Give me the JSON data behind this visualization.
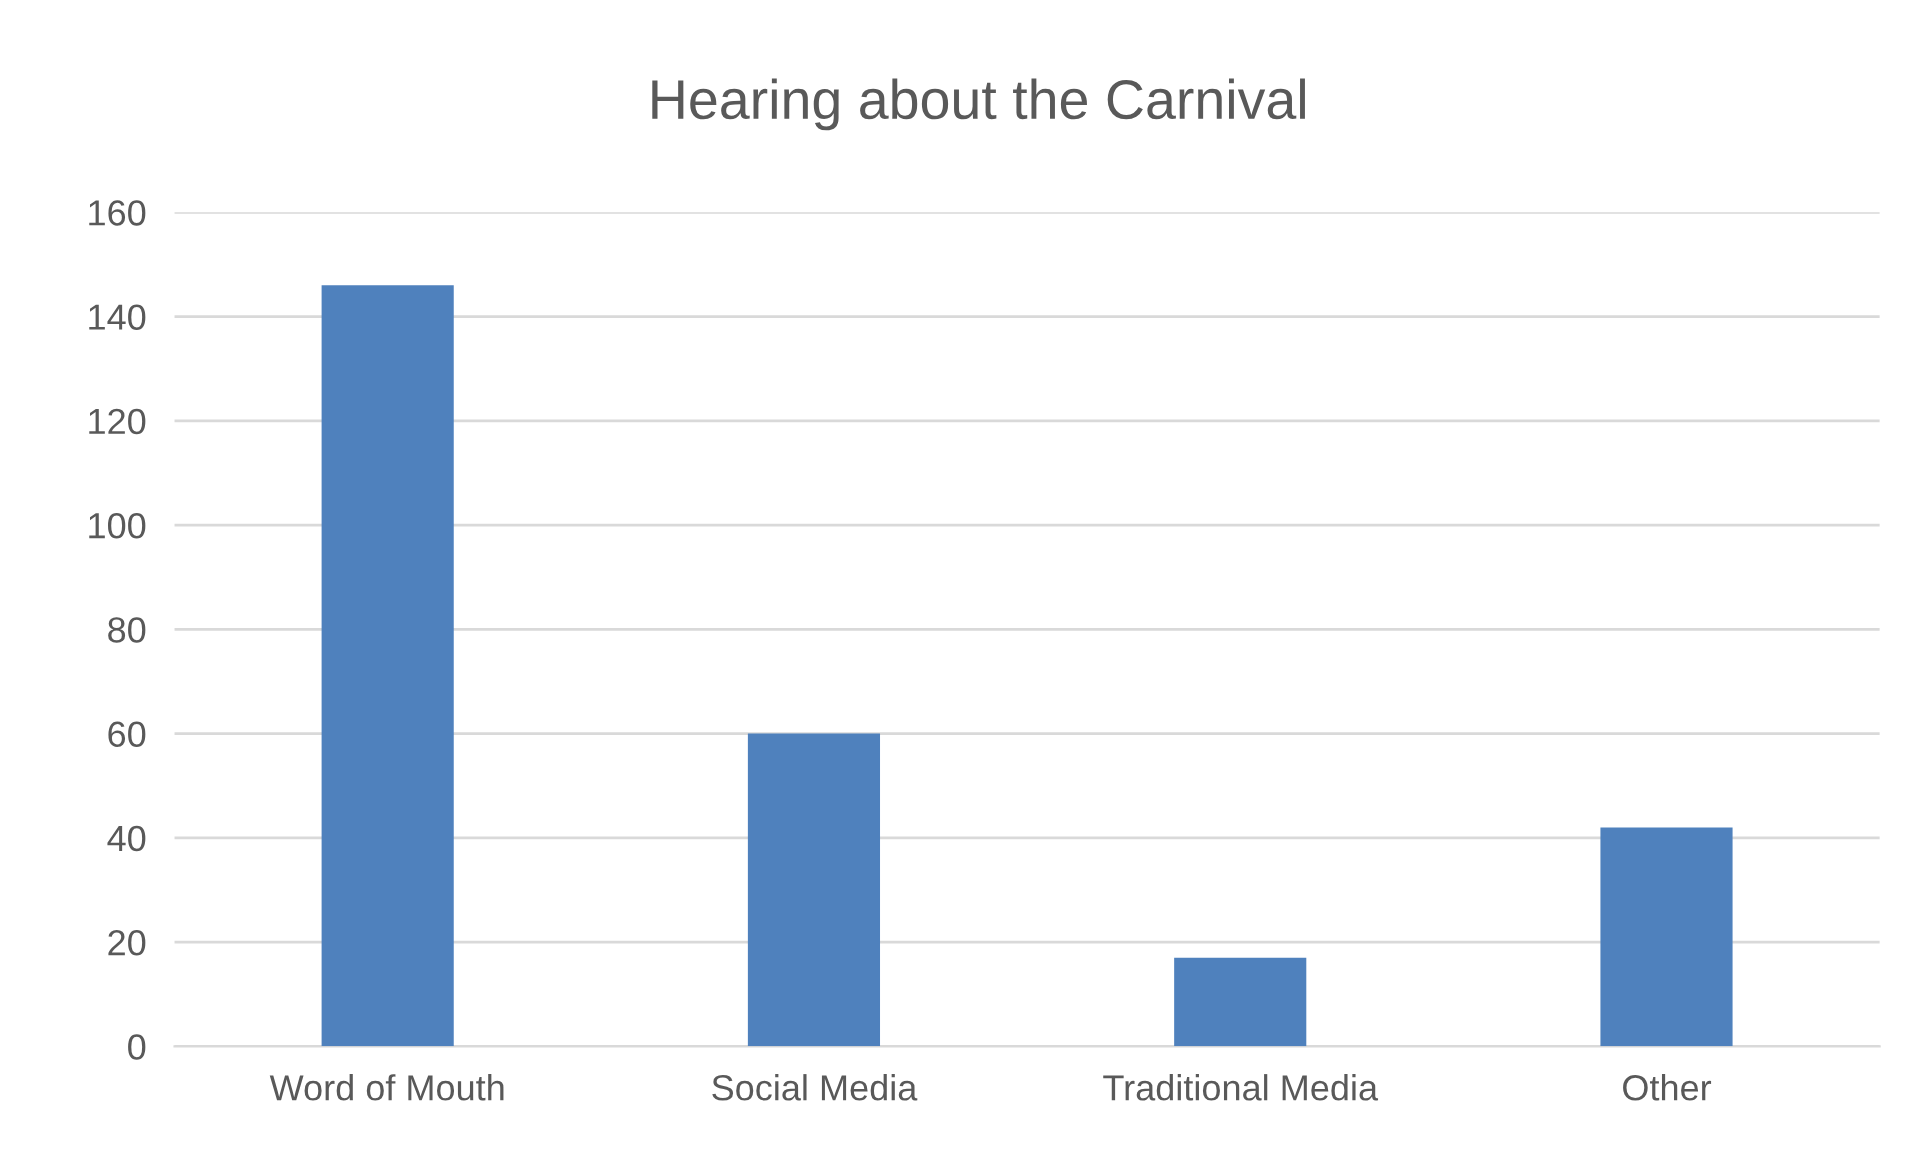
{
  "chart_data": {
    "type": "bar",
    "title": "Hearing about the Carnival",
    "categories": [
      "Word of Mouth",
      "Social Media",
      "Traditional Media",
      "Other"
    ],
    "values": [
      146,
      60,
      17,
      42
    ],
    "color": "#4f81bd",
    "ylim": [
      0,
      160
    ],
    "yticks": [
      0,
      20,
      40,
      60,
      80,
      100,
      120,
      140,
      160
    ],
    "grid": "y",
    "legend": false
  }
}
